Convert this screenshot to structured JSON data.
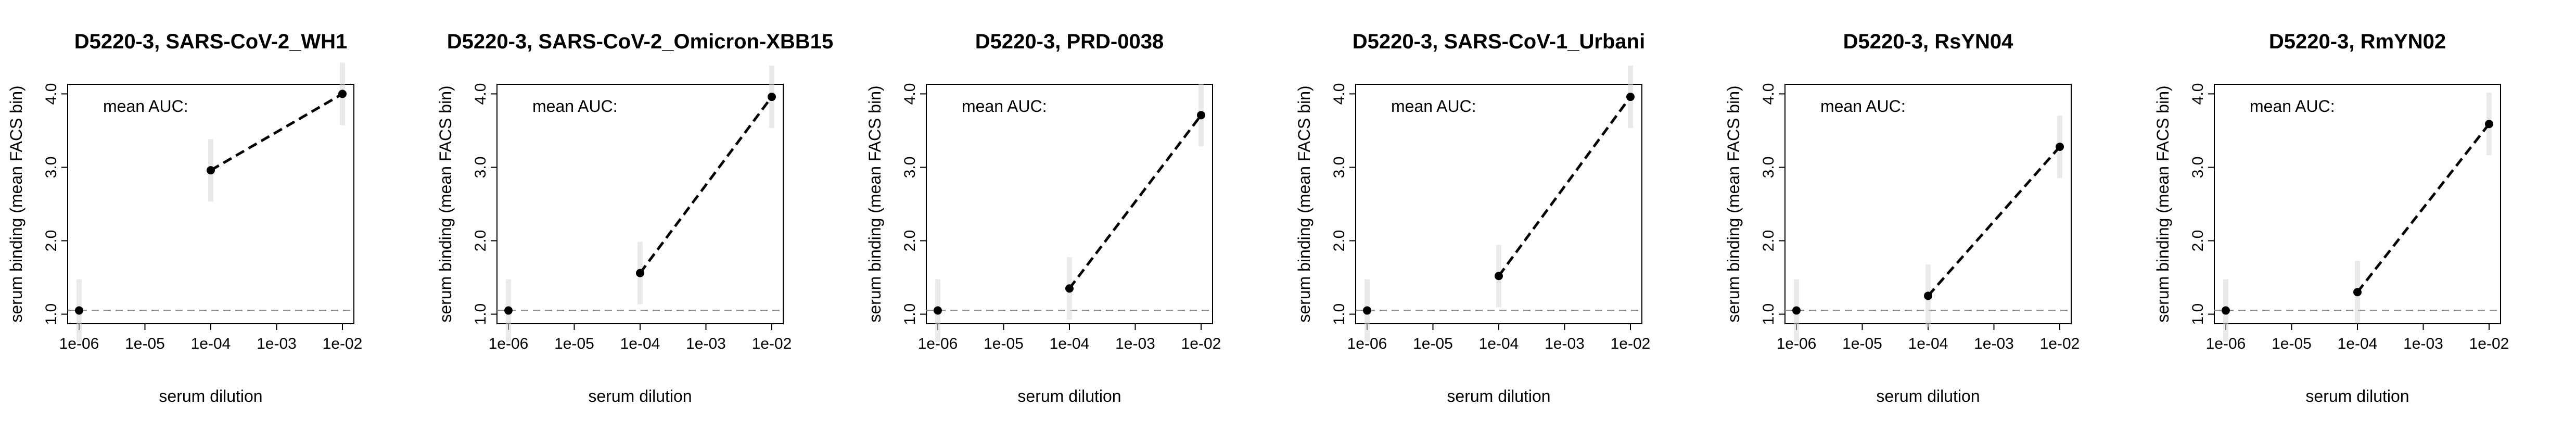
{
  "chart_data": [
    {
      "type": "line",
      "title": "D5220-3, SARS-CoV-2_WH1",
      "xlabel": "serum dilution",
      "ylabel": "serum binding (mean FACS bin)",
      "annotation": "mean AUC:",
      "x_scale": "log10",
      "xlim": [
        1e-06,
        0.01
      ],
      "ylim": [
        1.0,
        4.0
      ],
      "x_ticks": [
        "1e-06",
        "1e-05",
        "1e-04",
        "1e-03",
        "1e-02"
      ],
      "y_ticks": [
        "1.0",
        "2.0",
        "3.0",
        "4.0"
      ],
      "baseline": 1.05,
      "points": [
        {
          "x": 1e-06,
          "y": 1.05
        },
        {
          "x": 0.0001,
          "y": 2.96
        },
        {
          "x": 0.01,
          "y": 4.0
        }
      ],
      "connected_x_from": 0.0001
    },
    {
      "type": "line",
      "title": "D5220-3, SARS-CoV-2_Omicron-XBB15",
      "xlabel": "serum dilution",
      "ylabel": "serum binding (mean FACS bin)",
      "annotation": "mean AUC:",
      "x_scale": "log10",
      "xlim": [
        1e-06,
        0.01
      ],
      "ylim": [
        1.0,
        4.0
      ],
      "x_ticks": [
        "1e-06",
        "1e-05",
        "1e-04",
        "1e-03",
        "1e-02"
      ],
      "y_ticks": [
        "1.0",
        "2.0",
        "3.0",
        "4.0"
      ],
      "baseline": 1.05,
      "points": [
        {
          "x": 1e-06,
          "y": 1.05
        },
        {
          "x": 0.0001,
          "y": 1.56
        },
        {
          "x": 0.01,
          "y": 3.96
        }
      ],
      "connected_x_from": 0.0001
    },
    {
      "type": "line",
      "title": "D5220-3, PRD-0038",
      "xlabel": "serum dilution",
      "ylabel": "serum binding (mean FACS bin)",
      "annotation": "mean AUC:",
      "x_scale": "log10",
      "xlim": [
        1e-06,
        0.01
      ],
      "ylim": [
        1.0,
        4.0
      ],
      "x_ticks": [
        "1e-06",
        "1e-05",
        "1e-04",
        "1e-03",
        "1e-02"
      ],
      "y_ticks": [
        "1.0",
        "2.0",
        "3.0",
        "4.0"
      ],
      "baseline": 1.05,
      "points": [
        {
          "x": 1e-06,
          "y": 1.05
        },
        {
          "x": 0.0001,
          "y": 1.35
        },
        {
          "x": 0.01,
          "y": 3.71
        }
      ],
      "connected_x_from": 0.0001
    },
    {
      "type": "line",
      "title": "D5220-3, SARS-CoV-1_Urbani",
      "xlabel": "serum dilution",
      "ylabel": "serum binding (mean FACS bin)",
      "annotation": "mean AUC:",
      "x_scale": "log10",
      "xlim": [
        1e-06,
        0.01
      ],
      "ylim": [
        1.0,
        4.0
      ],
      "x_ticks": [
        "1e-06",
        "1e-05",
        "1e-04",
        "1e-03",
        "1e-02"
      ],
      "y_ticks": [
        "1.0",
        "2.0",
        "3.0",
        "4.0"
      ],
      "baseline": 1.05,
      "points": [
        {
          "x": 1e-06,
          "y": 1.05
        },
        {
          "x": 0.0001,
          "y": 1.52
        },
        {
          "x": 0.01,
          "y": 3.96
        }
      ],
      "connected_x_from": 0.0001
    },
    {
      "type": "line",
      "title": "D5220-3, RsYN04",
      "xlabel": "serum dilution",
      "ylabel": "serum binding (mean FACS bin)",
      "annotation": "mean AUC:",
      "x_scale": "log10",
      "xlim": [
        1e-06,
        0.01
      ],
      "ylim": [
        1.0,
        4.0
      ],
      "x_ticks": [
        "1e-06",
        "1e-05",
        "1e-04",
        "1e-03",
        "1e-02"
      ],
      "y_ticks": [
        "1.0",
        "2.0",
        "3.0",
        "4.0"
      ],
      "baseline": 1.05,
      "points": [
        {
          "x": 1e-06,
          "y": 1.05
        },
        {
          "x": 0.0001,
          "y": 1.25
        },
        {
          "x": 0.01,
          "y": 3.28
        }
      ],
      "connected_x_from": 0.0001
    },
    {
      "type": "line",
      "title": "D5220-3, RmYN02",
      "xlabel": "serum dilution",
      "ylabel": "serum binding (mean FACS bin)",
      "annotation": "mean AUC:",
      "x_scale": "log10",
      "xlim": [
        1e-06,
        0.01
      ],
      "ylim": [
        1.0,
        4.0
      ],
      "x_ticks": [
        "1e-06",
        "1e-05",
        "1e-04",
        "1e-03",
        "1e-02"
      ],
      "y_ticks": [
        "1.0",
        "2.0",
        "3.0",
        "4.0"
      ],
      "baseline": 1.05,
      "points": [
        {
          "x": 1e-06,
          "y": 1.05
        },
        {
          "x": 0.0001,
          "y": 1.3
        },
        {
          "x": 0.01,
          "y": 3.59
        }
      ],
      "connected_x_from": 0.0001
    }
  ]
}
